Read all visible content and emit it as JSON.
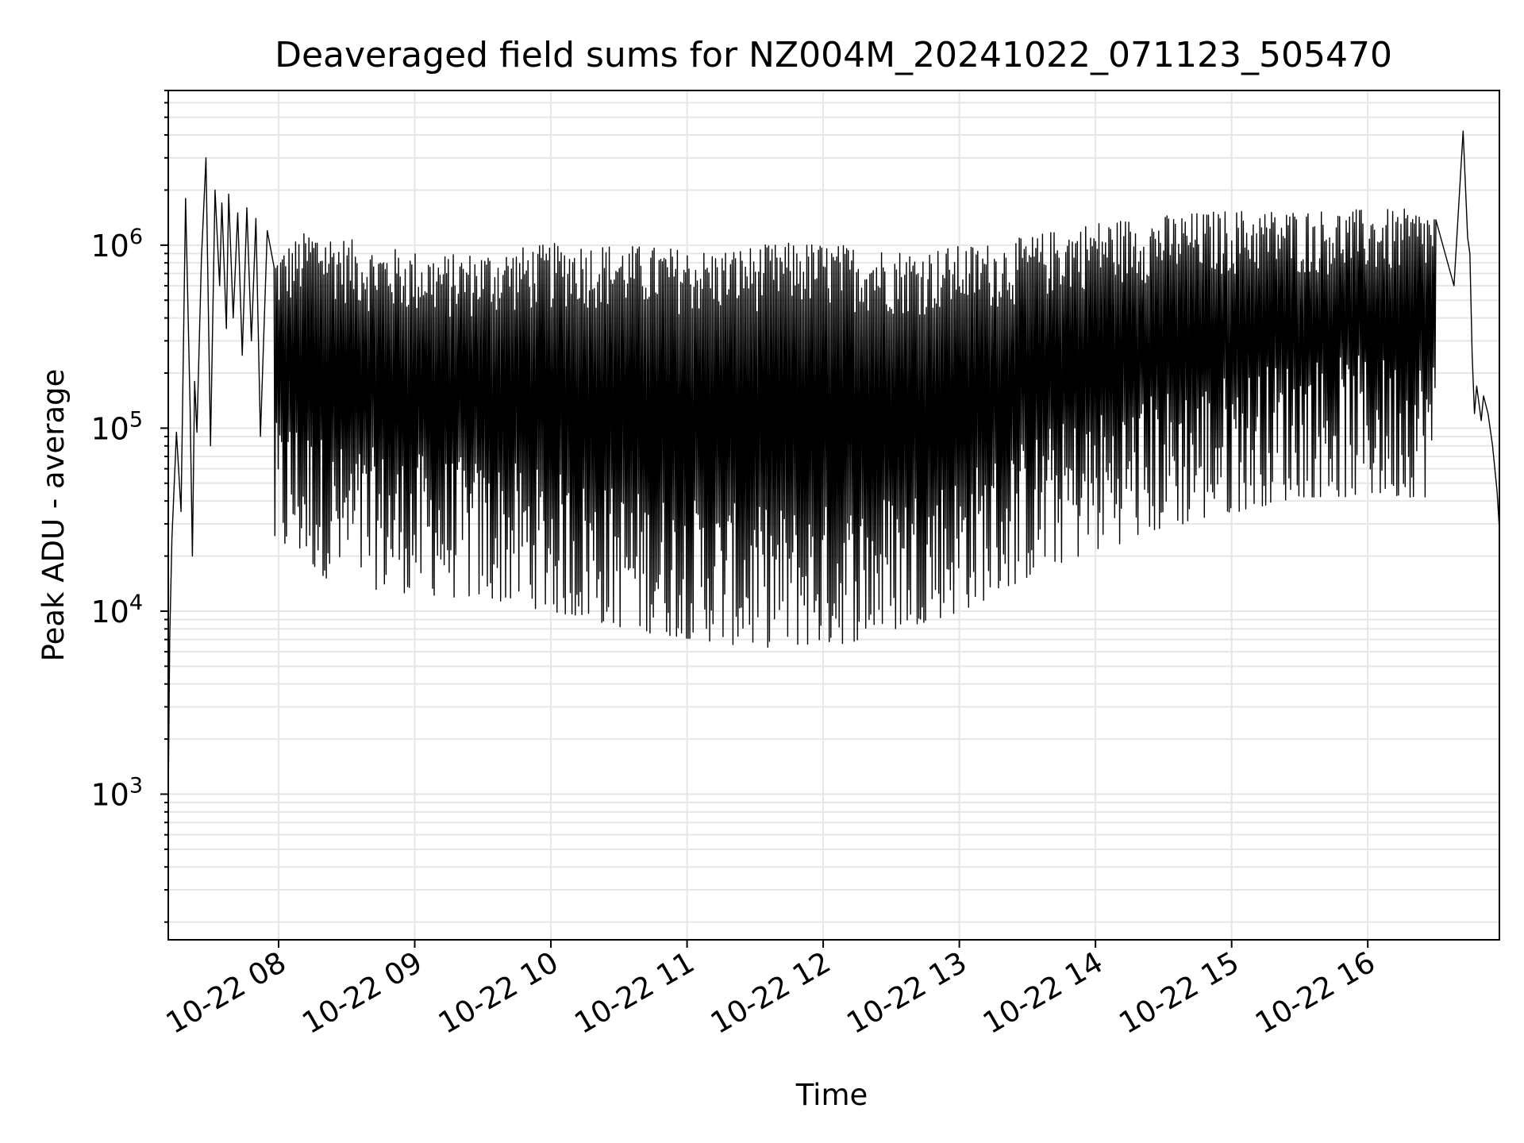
{
  "chart_data": {
    "type": "line",
    "title": "Deaveraged field sums for NZ004M_20241022_071123_505470",
    "xlabel": "Time",
    "ylabel": "Peak ADU - average",
    "y_scale": "log",
    "ylim": [
      160,
      7000000
    ],
    "xlim": [
      "2024-10-22T07:11:23",
      "2024-10-22T16:58:00"
    ],
    "x_tick_labels": [
      "10-22 08",
      "10-22 09",
      "10-22 10",
      "10-22 11",
      "10-22 12",
      "10-22 13",
      "10-22 14",
      "10-22 15",
      "10-22 16"
    ],
    "y_tick_labels": [
      {
        "base": "10",
        "exp": "3"
      },
      {
        "base": "10",
        "exp": "4"
      },
      {
        "base": "10",
        "exp": "5"
      },
      {
        "base": "10",
        "exp": "6"
      }
    ],
    "grid": true,
    "legend": "none",
    "line_color": "#000000",
    "grid_color": "#e6e6e6",
    "series": [
      {
        "x": [
          "2024-10-22T07:11:30",
          "2024-10-22T07:12:00",
          "2024-10-22T07:13:00",
          "2024-10-22T07:15:00",
          "2024-10-22T07:17:00",
          "2024-10-22T07:19:00",
          "2024-10-22T07:21:00",
          "2024-10-22T07:22:00",
          "2024-10-22T07:23:00",
          "2024-10-22T07:24:00",
          "2024-10-22T07:26:00",
          "2024-10-22T07:28:00",
          "2024-10-22T07:30:00",
          "2024-10-22T07:32:00",
          "2024-10-22T07:34:00",
          "2024-10-22T07:35:00",
          "2024-10-22T07:37:00",
          "2024-10-22T07:38:00",
          "2024-10-22T07:40:00",
          "2024-10-22T07:42:00",
          "2024-10-22T07:44:00",
          "2024-10-22T07:46:00",
          "2024-10-22T07:48:00",
          "2024-10-22T07:50:00",
          "2024-10-22T07:52:00",
          "2024-10-22T07:55:00",
          "2024-10-22T07:58:00",
          "2024-10-22T08:00:00",
          "2024-10-22T08:05:00",
          "2024-10-22T08:15:00",
          "2024-10-22T08:25:00",
          "2024-10-22T08:40:00",
          "2024-10-22T08:55:00",
          "2024-10-22T09:15:00",
          "2024-10-22T09:40:00",
          "2024-10-22T10:10:00",
          "2024-10-22T10:40:00",
          "2024-10-22T11:10:00",
          "2024-10-22T11:30:00",
          "2024-10-22T11:50:00",
          "2024-10-22T12:10:00",
          "2024-10-22T12:40:00",
          "2024-10-22T13:00:00",
          "2024-10-22T13:20:00",
          "2024-10-22T13:40:00",
          "2024-10-22T14:00:00",
          "2024-10-22T14:30:00",
          "2024-10-22T15:00:00",
          "2024-10-22T15:30:00",
          "2024-10-22T16:00:00",
          "2024-10-22T16:20:00",
          "2024-10-22T16:30:00",
          "2024-10-22T16:38:00",
          "2024-10-22T16:42:00",
          "2024-10-22T16:44:00",
          "2024-10-22T16:45:00",
          "2024-10-22T16:46:00",
          "2024-10-22T16:47:00",
          "2024-10-22T16:48:00",
          "2024-10-22T16:50:00",
          "2024-10-22T16:51:00",
          "2024-10-22T16:53:00",
          "2024-10-22T16:55:00",
          "2024-10-22T16:57:00",
          "2024-10-22T16:58:00"
        ],
        "y": [
          1300,
          7000,
          25000,
          95000,
          35000,
          1800000,
          130000,
          20000,
          180000,
          95000,
          850000,
          3000000,
          80000,
          2000000,
          600000,
          1700000,
          350000,
          1900000,
          400000,
          1500000,
          250000,
          1600000,
          300000,
          1400000,
          90000,
          1200000,
          25000,
          900000,
          30000,
          1200000,
          20000,
          950000,
          18000,
          850000,
          16000,
          1000000,
          11000,
          900000,
          9000,
          1000000,
          9500,
          900000,
          14000,
          1000000,
          25000,
          1300000,
          40000,
          1500000,
          60000,
          1500000,
          60000,
          1500000,
          600000,
          4200000,
          1100000,
          900000,
          250000,
          120000,
          170000,
          110000,
          150000,
          120000,
          80000,
          45000,
          28000
        ]
      }
    ]
  }
}
